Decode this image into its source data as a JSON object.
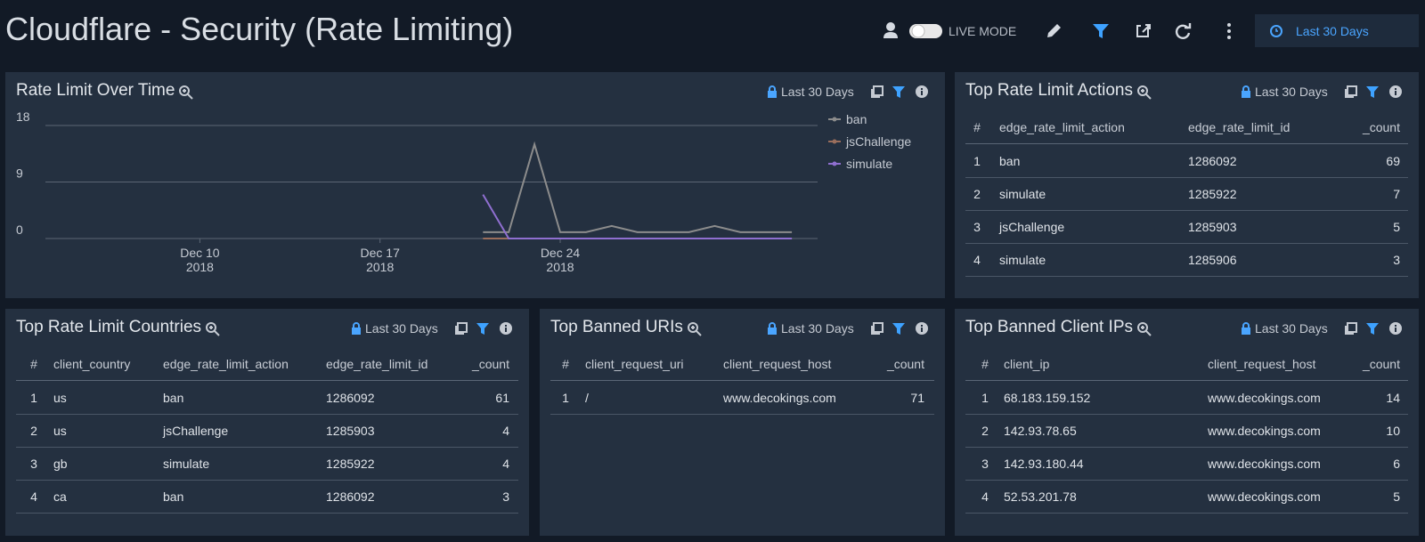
{
  "header": {
    "title": "Cloudflare - Security (Rate Limiting)",
    "live_mode": "LIVE MODE",
    "time_range": "Last 30 Days"
  },
  "panels": [
    {
      "title": "Rate Limit Over Time",
      "time_range": "Last 30 Days",
      "chart_data": {
        "type": "line",
        "x": [
          "2018-12-21",
          "2018-12-22",
          "2018-12-23",
          "2018-12-24",
          "2018-12-25",
          "2018-12-26",
          "2018-12-27",
          "2018-12-28",
          "2018-12-29",
          "2018-12-30",
          "2018-12-31",
          "2019-01-01",
          "2019-01-02"
        ],
        "xlim": [
          "2018-12-04",
          "2019-01-03"
        ],
        "xticks": [
          {
            "value": "2018-12-10",
            "label": "Dec 10\n2018"
          },
          {
            "value": "2018-12-17",
            "label": "Dec 17\n2018"
          },
          {
            "value": "2018-12-24",
            "label": "Dec 24\n2018"
          }
        ],
        "ylim": [
          0,
          18
        ],
        "yticks": [
          0,
          9,
          18
        ],
        "grid": true,
        "series": [
          {
            "name": "ban",
            "color": "#8c8c8c",
            "values": [
              1,
              1,
              15,
              1,
              1,
              2,
              1,
              1,
              1,
              2,
              1,
              1,
              1
            ]
          },
          {
            "name": "jsChallenge",
            "color": "#9a6e5c",
            "values": [
              0,
              0,
              0,
              0,
              0,
              0,
              0,
              0,
              0,
              0,
              0,
              0,
              0
            ]
          },
          {
            "name": "simulate",
            "color": "#8f6fd0",
            "values": [
              7,
              0,
              0,
              0,
              0,
              0,
              0,
              0,
              0,
              0,
              0,
              0,
              0
            ]
          }
        ]
      }
    },
    {
      "title": "Top Rate Limit Actions",
      "time_range": "Last 30 Days",
      "table": {
        "columns": [
          "#",
          "edge_rate_limit_action",
          "edge_rate_limit_id",
          "_count"
        ],
        "rows": [
          [
            "1",
            "ban",
            "1286092",
            "69"
          ],
          [
            "2",
            "simulate",
            "1285922",
            "7"
          ],
          [
            "3",
            "jsChallenge",
            "1285903",
            "5"
          ],
          [
            "4",
            "simulate",
            "1285906",
            "3"
          ]
        ]
      }
    },
    {
      "title": "Top Rate Limit Countries",
      "time_range": "Last 30 Days",
      "table": {
        "columns": [
          "#",
          "client_country",
          "edge_rate_limit_action",
          "edge_rate_limit_id",
          "_count"
        ],
        "rows": [
          [
            "1",
            "us",
            "ban",
            "1286092",
            "61"
          ],
          [
            "2",
            "us",
            "jsChallenge",
            "1285903",
            "4"
          ],
          [
            "3",
            "gb",
            "simulate",
            "1285922",
            "4"
          ],
          [
            "4",
            "ca",
            "ban",
            "1286092",
            "3"
          ]
        ]
      }
    },
    {
      "title": "Top Banned URIs",
      "time_range": "Last 30 Days",
      "table": {
        "columns": [
          "#",
          "client_request_uri",
          "client_request_host",
          "_count"
        ],
        "rows": [
          [
            "1",
            "/",
            "www.decokings.com",
            "71"
          ]
        ]
      }
    },
    {
      "title": "Top Banned Client IPs",
      "time_range": "Last 30 Days",
      "table": {
        "columns": [
          "#",
          "client_ip",
          "client_request_host",
          "_count"
        ],
        "rows": [
          [
            "1",
            "68.183.159.152",
            "www.decokings.com",
            "14"
          ],
          [
            "2",
            "142.93.78.65",
            "www.decokings.com",
            "10"
          ],
          [
            "3",
            "142.93.180.44",
            "www.decokings.com",
            "6"
          ],
          [
            "4",
            "52.53.201.78",
            "www.decokings.com",
            "5"
          ]
        ]
      }
    }
  ]
}
